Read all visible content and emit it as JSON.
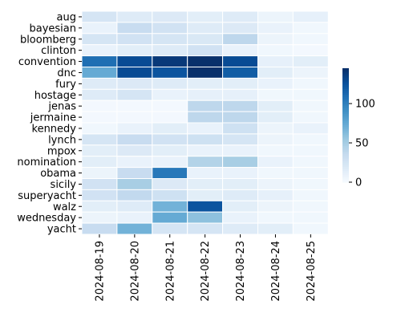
{
  "chart_data": {
    "type": "heatmap",
    "title": "",
    "xlabel": "",
    "ylabel": "",
    "x": [
      "2024-08-19",
      "2024-08-20",
      "2024-08-21",
      "2024-08-22",
      "2024-08-23",
      "2024-08-24",
      "2024-08-25"
    ],
    "y": [
      "aug",
      "bayesian",
      "bloomberg",
      "clinton",
      "convention",
      "dnc",
      "fury",
      "hostage",
      "jenas",
      "jermaine",
      "kennedy",
      "lynch",
      "mpox",
      "nomination",
      "obama",
      "sicily",
      "superyacht",
      "walz",
      "wednesday",
      "yacht"
    ],
    "values": [
      [
        25,
        18,
        20,
        15,
        18,
        8,
        12
      ],
      [
        10,
        35,
        28,
        18,
        20,
        10,
        5
      ],
      [
        25,
        28,
        25,
        22,
        40,
        8,
        5
      ],
      [
        10,
        15,
        18,
        28,
        10,
        5,
        3
      ],
      [
        110,
        130,
        140,
        145,
        130,
        12,
        15
      ],
      [
        75,
        130,
        125,
        145,
        120,
        15,
        8
      ],
      [
        18,
        20,
        18,
        15,
        15,
        10,
        5
      ],
      [
        18,
        25,
        10,
        12,
        12,
        5,
        5
      ],
      [
        3,
        3,
        3,
        40,
        40,
        15,
        5
      ],
      [
        3,
        3,
        3,
        40,
        40,
        15,
        5
      ],
      [
        5,
        10,
        15,
        10,
        30,
        8,
        10
      ],
      [
        25,
        35,
        28,
        30,
        25,
        8,
        5
      ],
      [
        15,
        20,
        15,
        10,
        10,
        5,
        5
      ],
      [
        15,
        10,
        10,
        45,
        50,
        10,
        5
      ],
      [
        8,
        35,
        105,
        10,
        10,
        5,
        5
      ],
      [
        28,
        50,
        20,
        15,
        15,
        8,
        5
      ],
      [
        28,
        38,
        30,
        15,
        18,
        12,
        5
      ],
      [
        15,
        18,
        70,
        125,
        15,
        8,
        5
      ],
      [
        8,
        10,
        75,
        60,
        10,
        5,
        5
      ],
      [
        35,
        70,
        25,
        25,
        18,
        15,
        5
      ]
    ],
    "colorbar": {
      "ticks": [
        0,
        50,
        100
      ],
      "min": 0,
      "max": 145,
      "colormap": "Blues"
    },
    "grid": false,
    "legend": "colorbar-right"
  }
}
